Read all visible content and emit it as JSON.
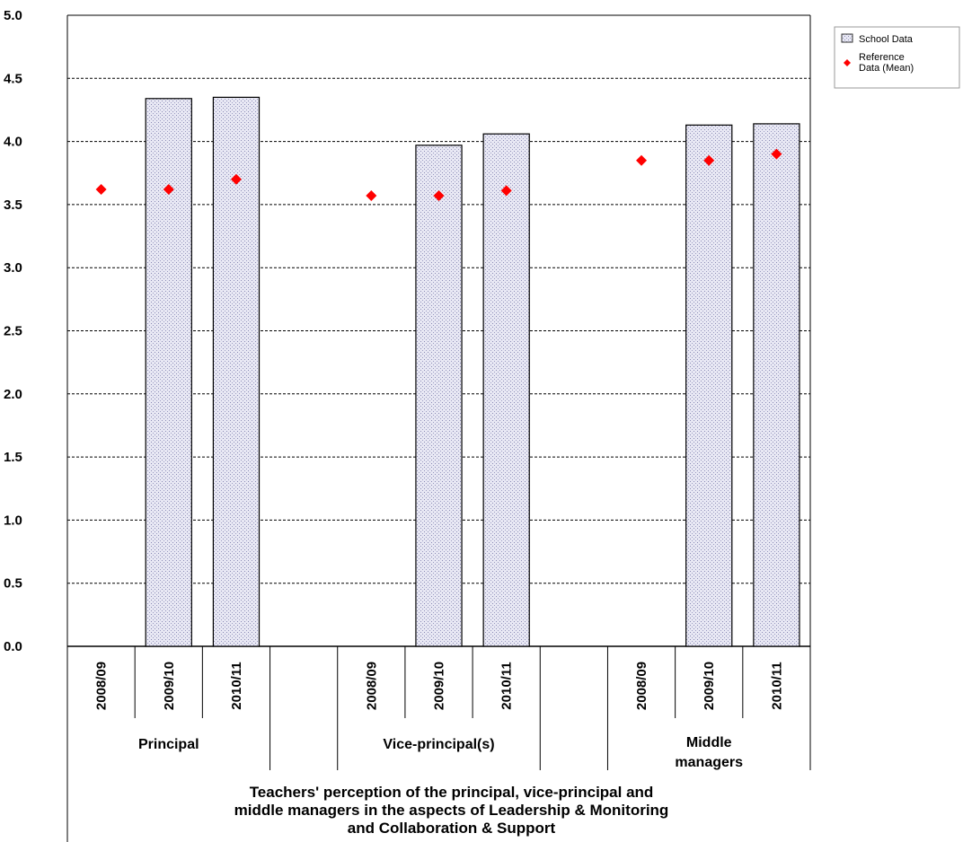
{
  "chart_data": {
    "type": "bar",
    "title": "",
    "xlabel": "Teachers' perception of the principal, vice-principal and middle managers in the aspects of Leadership & Monitoring and Collaboration & Support",
    "xlabel_lines": [
      "Teachers' perception of the principal, vice-principal and",
      "middle managers in the aspects of Leadership & Monitoring",
      "and Collaboration & Support"
    ],
    "ylabel": "",
    "ylim": [
      0,
      5
    ],
    "yticks": [
      "0.0",
      "0.5",
      "1.0",
      "1.5",
      "2.0",
      "2.5",
      "3.0",
      "3.5",
      "4.0",
      "4.5",
      "5.0"
    ],
    "grid": true,
    "legend_position": "top-right",
    "groups": [
      {
        "label_lines": [
          "Principal"
        ],
        "categories": [
          "2008/09",
          "2009/10",
          "2010/11"
        ]
      },
      {
        "label_lines": [
          "Vice-principal(s)"
        ],
        "categories": [
          "2008/09",
          "2009/10",
          "2010/11"
        ]
      },
      {
        "label_lines": [
          "Middle",
          "managers"
        ],
        "categories": [
          "2008/09",
          "2009/10",
          "2010/11"
        ]
      }
    ],
    "series": [
      {
        "name": "School Data",
        "kind": "bar",
        "color": "#e6e6f2",
        "values": [
          [
            null,
            4.34,
            4.35
          ],
          [
            null,
            3.97,
            4.06
          ],
          [
            null,
            4.13,
            4.14
          ]
        ]
      },
      {
        "name": "Reference Data (Mean)",
        "legend_lines": [
          "Reference",
          "Data (Mean)"
        ],
        "kind": "marker",
        "marker": "diamond",
        "color": "#ff0000",
        "values": [
          [
            3.62,
            3.62,
            3.7
          ],
          [
            3.57,
            3.57,
            3.61
          ],
          [
            3.85,
            3.85,
            3.9
          ]
        ]
      }
    ]
  }
}
